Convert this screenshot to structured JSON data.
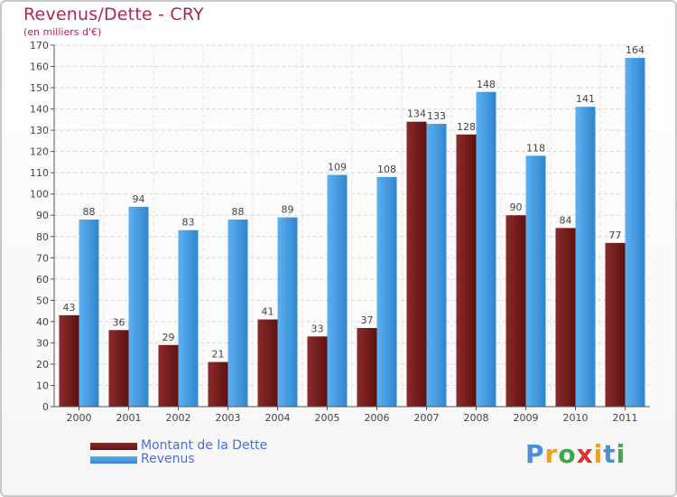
{
  "page": {
    "title": "Revenus/Dette - CRY",
    "subtitle": "(en milliers d'€)"
  },
  "chart_data": {
    "type": "bar",
    "title": "Revenus/Dette - CRY",
    "subtitle": "(en milliers d'€)",
    "categories": [
      "2000",
      "2001",
      "2002",
      "2003",
      "2004",
      "2005",
      "2006",
      "2007",
      "2008",
      "2009",
      "2010",
      "2011"
    ],
    "series": [
      {
        "name": "Montant de la Dette",
        "color": "#7a1d1d",
        "values": [
          43,
          36,
          29,
          21,
          41,
          33,
          37,
          134,
          128,
          90,
          84,
          77
        ]
      },
      {
        "name": "Revenus",
        "color": "#4aa3e8",
        "values": [
          88,
          94,
          83,
          88,
          89,
          109,
          108,
          133,
          148,
          118,
          141,
          164
        ]
      }
    ],
    "ylim": [
      0,
      170
    ],
    "yticks": [
      0,
      10,
      20,
      30,
      40,
      50,
      60,
      70,
      80,
      90,
      100,
      110,
      120,
      130,
      140,
      150,
      160,
      170
    ],
    "grid": true,
    "legend_position": "bottom-left",
    "data_labels": true
  },
  "legend": {
    "items": [
      {
        "label": "Montant de la Dette",
        "color": "#7a1d1d"
      },
      {
        "label": "Revenus",
        "color": "#4aa3e8"
      }
    ]
  },
  "brand": {
    "letters": [
      "P",
      "r",
      "o",
      "x",
      "i",
      "t",
      "i"
    ],
    "colors": [
      "#4a8fd8",
      "#f0a020",
      "#3aaa4a",
      "#e03030",
      "#f0a020",
      "#4a8fd8",
      "#3aaa4a"
    ]
  }
}
